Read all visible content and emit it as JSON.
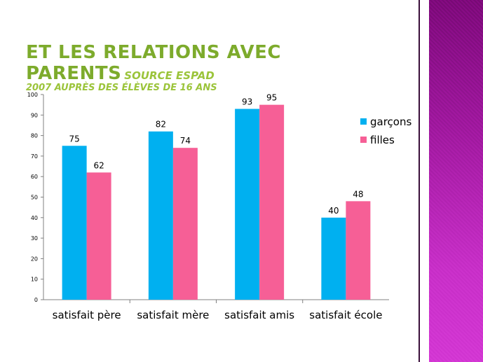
{
  "slide": {
    "title": "Et les relations avec parents",
    "source": "source ESPAD",
    "subtitle": "2007 auprès des élèves de 16 ans"
  },
  "chart_data": {
    "type": "bar",
    "categories": [
      "satisfait père",
      "satisfait mère",
      "satisfait amis",
      "satisfait école"
    ],
    "series": [
      {
        "name": "garçons",
        "values": [
          75,
          82,
          93,
          40
        ],
        "color": "#00b0f0"
      },
      {
        "name": "filles",
        "values": [
          62,
          74,
          95,
          48
        ],
        "color": "#f65f96"
      }
    ],
    "yticks": [
      0,
      10,
      20,
      30,
      40,
      50,
      60,
      70,
      80,
      90,
      100
    ],
    "ylim": [
      0,
      100
    ],
    "grid": false,
    "legend": "right",
    "data_labels": true
  }
}
